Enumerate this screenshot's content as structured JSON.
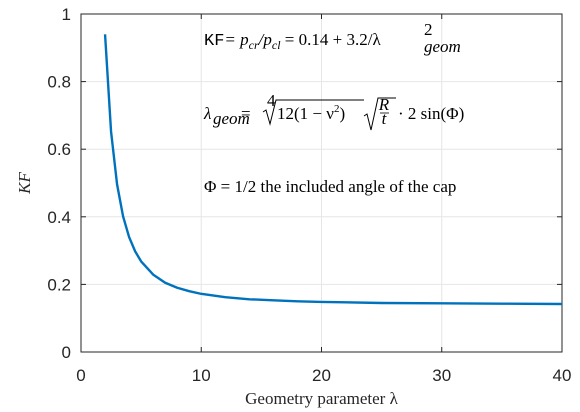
{
  "chart_data": {
    "type": "line",
    "title": "",
    "xlabel": "Geometry parameter λ",
    "ylabel": "KF",
    "xlim": [
      0,
      40
    ],
    "ylim": [
      0,
      1
    ],
    "xticks": [
      0,
      10,
      20,
      30,
      40
    ],
    "yticks": [
      0,
      0.2,
      0.4,
      0.6,
      0.8,
      1
    ],
    "xtick_labels": [
      "0",
      "10",
      "20",
      "30",
      "40"
    ],
    "ytick_labels": [
      "0",
      "0.2",
      "0.4",
      "0.6",
      "0.8",
      "1"
    ],
    "grid": true,
    "legend": "none",
    "series": [
      {
        "color": "#0072BD",
        "formula": "KF = 0.14 + 3.2/λ^2",
        "x": [
          2,
          2.5,
          3,
          3.5,
          4,
          4.5,
          5,
          6,
          7,
          8,
          9,
          10,
          12,
          14,
          16,
          18,
          20,
          22,
          25,
          30,
          35,
          40
        ],
        "values": [
          0.94,
          0.652,
          0.496,
          0.401,
          0.34,
          0.298,
          0.268,
          0.229,
          0.205,
          0.19,
          0.18,
          0.172,
          0.162,
          0.156,
          0.153,
          0.15,
          0.148,
          0.147,
          0.145,
          0.144,
          0.143,
          0.142
        ]
      }
    ],
    "annotations": {
      "line1": {
        "kf": "KF",
        "rest": "= p",
        "sub1": "cr",
        "mid": "/p",
        "sub2": "cl",
        "tail": " = 0.14 + 3.2/λ",
        "sup": "2",
        "sub3": "geom"
      },
      "line2": {
        "lam": "λ",
        "sub": "geom",
        "eq": " = ",
        "rootidx": "4",
        "radicand": "12(1 − ν",
        "rad_sup": "2",
        "rad_close": ")",
        "frac_num": "R",
        "frac_den": "t",
        "tail": " · 2 sin(Φ)"
      },
      "line3": "Φ = 1/2 the included angle of the cap"
    }
  }
}
